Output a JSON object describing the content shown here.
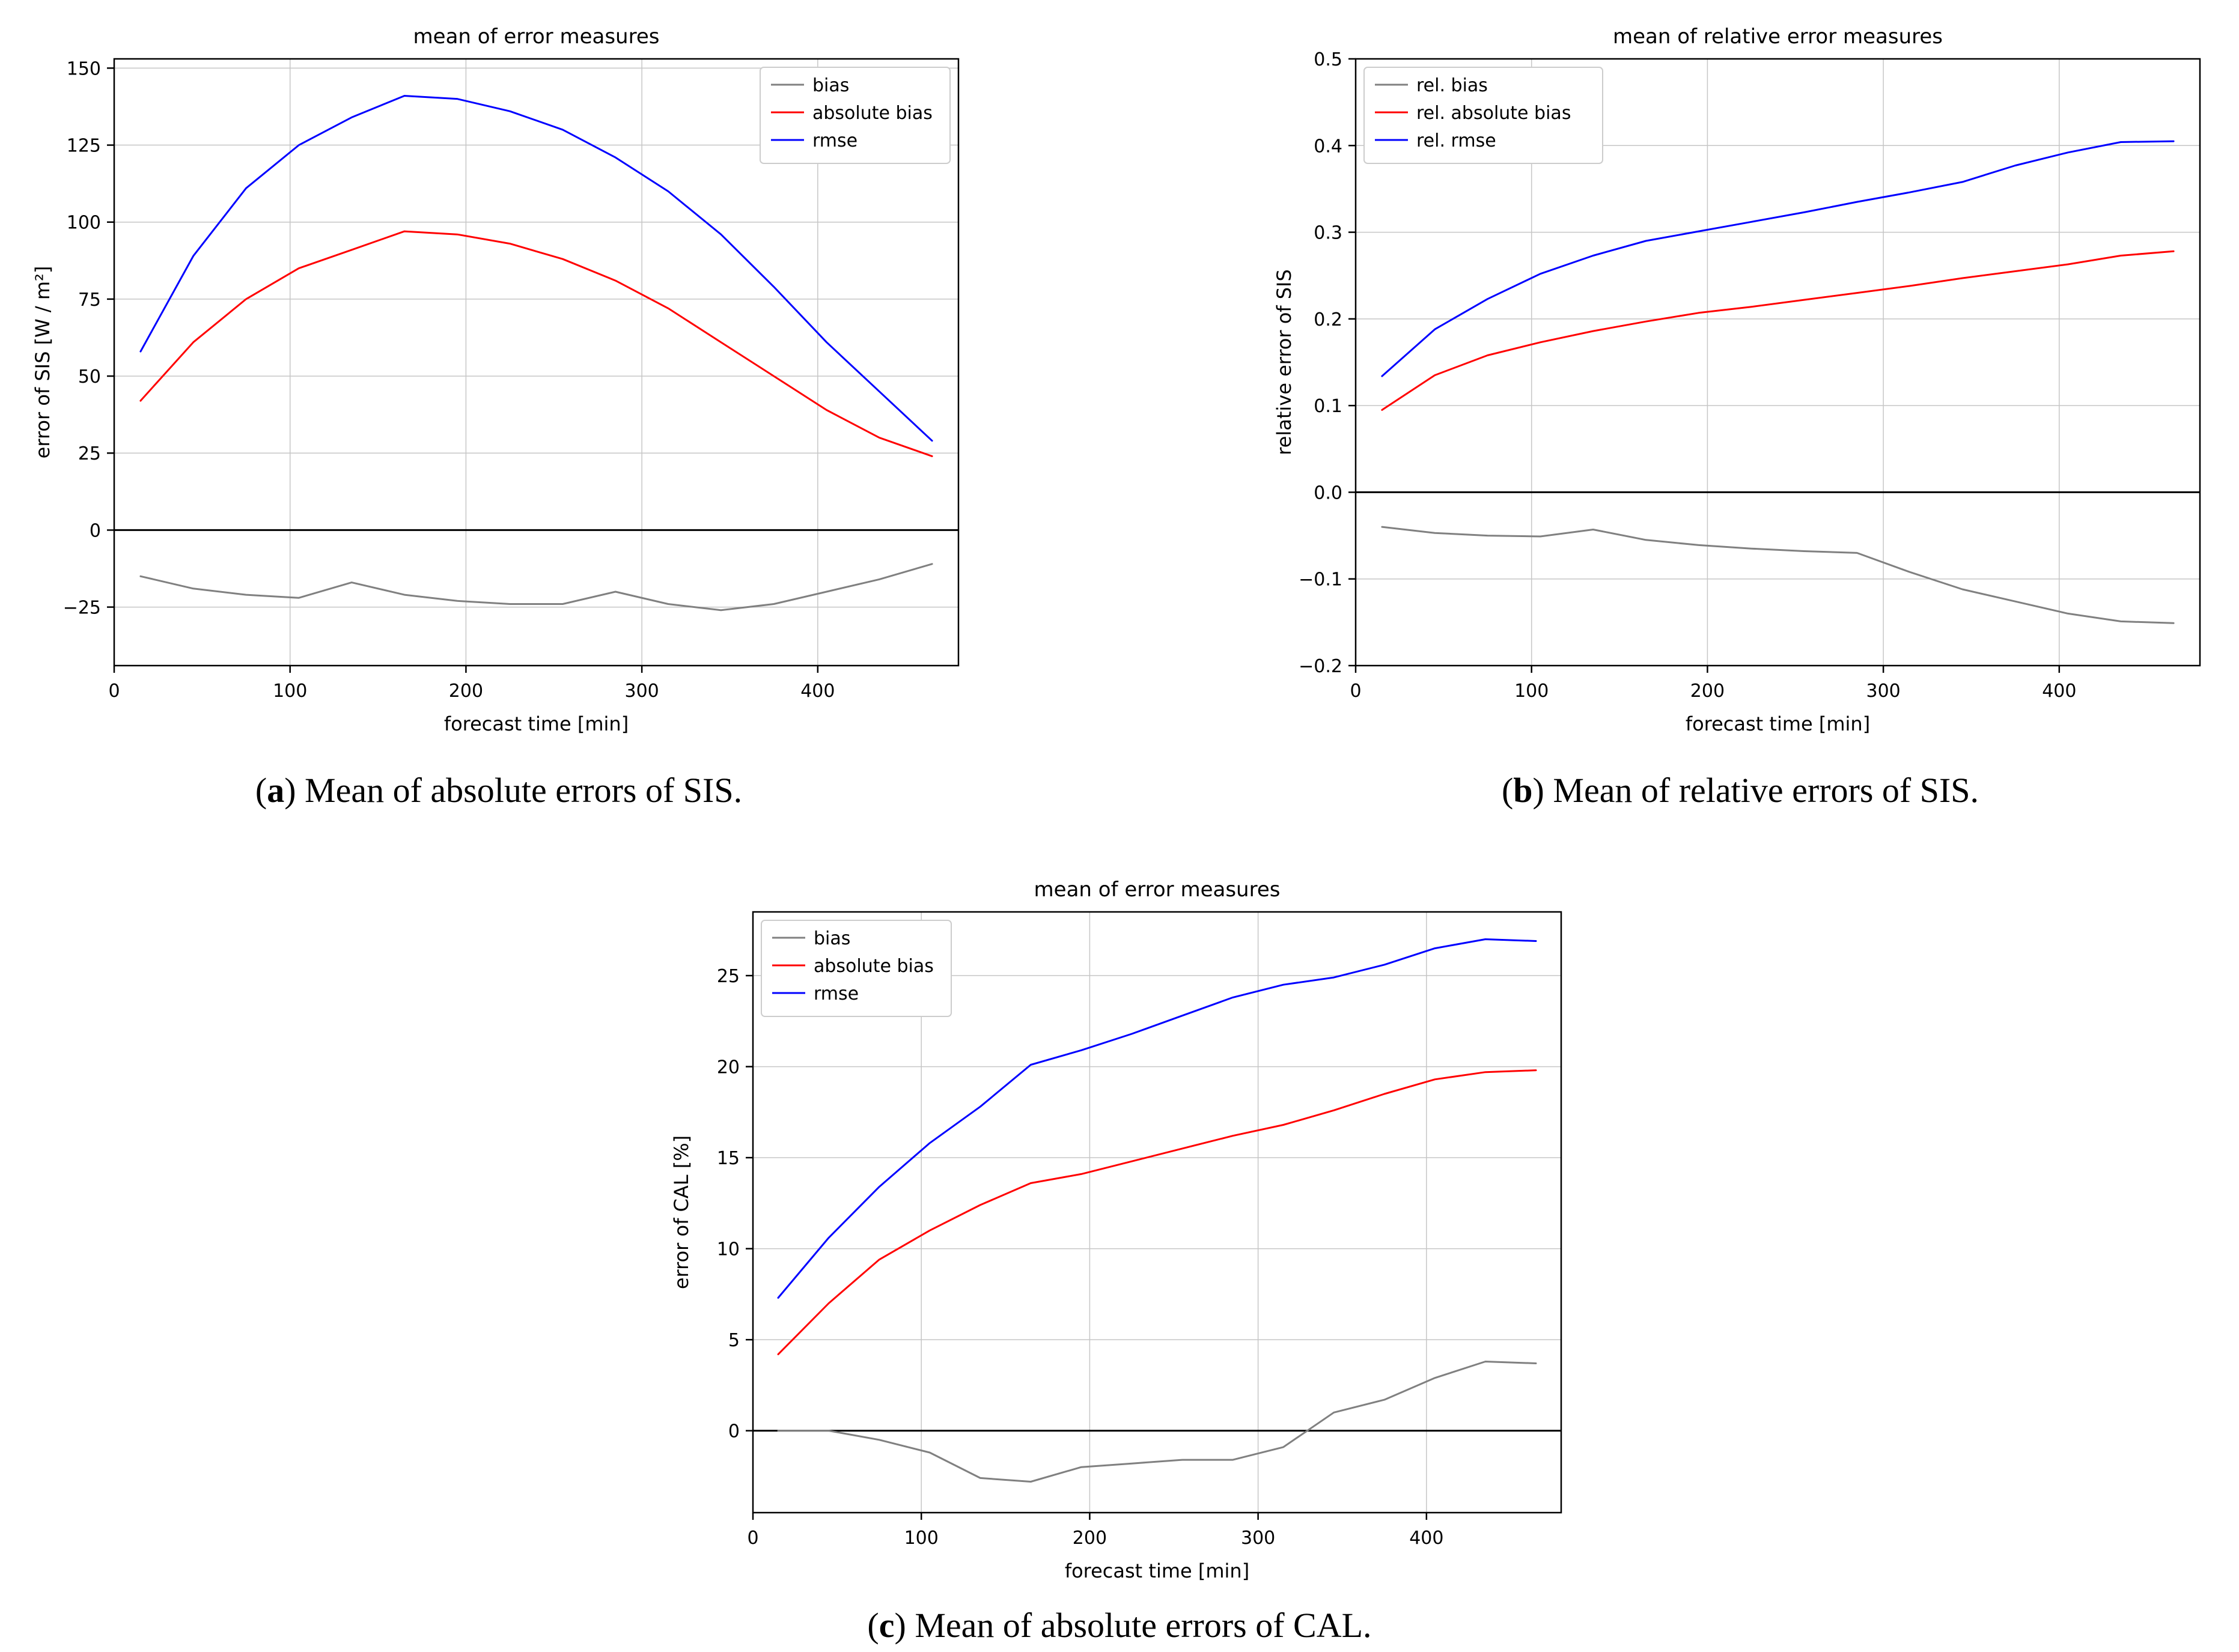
{
  "colors": {
    "bias": "#808080",
    "absolute_bias": "#ff0000",
    "rmse": "#0000ff",
    "grid": "#c6c6c6",
    "axis": "#000000",
    "legend_border": "#cccccc",
    "background": "#ffffff"
  },
  "captions": {
    "a": {
      "prefix": "(",
      "label": "a",
      "suffix": ")",
      "text": "Mean of absolute errors of SIS."
    },
    "b": {
      "prefix": "(",
      "label": "b",
      "suffix": ")",
      "text": "Mean of relative errors of SIS."
    },
    "c": {
      "prefix": "(",
      "label": "c",
      "suffix": ")",
      "text": "Mean of absolute errors of CAL."
    }
  },
  "chart_data": [
    {
      "id": "a",
      "type": "line",
      "title": "mean of error measures",
      "xlabel": "forecast time [min]",
      "ylabel": "error of SIS [W / m²]",
      "xlim": [
        0,
        480
      ],
      "ylim": [
        -44,
        153
      ],
      "xticks": [
        0,
        100,
        200,
        300,
        400
      ],
      "xtick_labels": [
        "0",
        "100",
        "200",
        "300",
        "400"
      ],
      "yticks": [
        -25,
        0,
        25,
        50,
        75,
        100,
        125,
        150
      ],
      "ytick_labels": [
        "−25",
        "0",
        "25",
        "50",
        "75",
        "100",
        "125",
        "150"
      ],
      "grid": true,
      "zero_line": true,
      "legend_position": "upper-right",
      "x": [
        15,
        45,
        75,
        105,
        135,
        165,
        195,
        225,
        255,
        285,
        315,
        345,
        375,
        405,
        435,
        465
      ],
      "series": [
        {
          "name": "bias",
          "color": "#808080",
          "values": [
            -15,
            -19,
            -21,
            -22,
            -17,
            -21,
            -23,
            -24,
            -24,
            -20,
            -24,
            -26,
            -24,
            -20,
            -16,
            -11
          ]
        },
        {
          "name": "absolute bias",
          "color": "#ff0000",
          "values": [
            42,
            61,
            75,
            85,
            91,
            97,
            96,
            93,
            88,
            81,
            72,
            61,
            50,
            39,
            30,
            24
          ]
        },
        {
          "name": "rmse",
          "color": "#0000ff",
          "values": [
            58,
            89,
            111,
            125,
            134,
            141,
            140,
            136,
            130,
            121,
            110,
            96,
            79,
            61,
            45,
            29
          ]
        }
      ]
    },
    {
      "id": "b",
      "type": "line",
      "title": "mean of relative error measures",
      "xlabel": "forecast time [min]",
      "ylabel": "relative error of SIS",
      "xlim": [
        0,
        480
      ],
      "ylim": [
        -0.2,
        0.5
      ],
      "xticks": [
        0,
        100,
        200,
        300,
        400
      ],
      "xtick_labels": [
        "0",
        "100",
        "200",
        "300",
        "400"
      ],
      "yticks": [
        -0.2,
        -0.1,
        0.0,
        0.1,
        0.2,
        0.3,
        0.4,
        0.5
      ],
      "ytick_labels": [
        "−0.2",
        "−0.1",
        "0.0",
        "0.1",
        "0.2",
        "0.3",
        "0.4",
        "0.5"
      ],
      "grid": true,
      "zero_line": true,
      "legend_position": "upper-left",
      "x": [
        15,
        45,
        75,
        105,
        135,
        165,
        195,
        225,
        255,
        285,
        315,
        345,
        375,
        405,
        435,
        465
      ],
      "series": [
        {
          "name": "rel. bias",
          "color": "#808080",
          "values": [
            -0.04,
            -0.047,
            -0.05,
            -0.051,
            -0.043,
            -0.055,
            -0.061,
            -0.065,
            -0.068,
            -0.07,
            -0.092,
            -0.112,
            -0.126,
            -0.14,
            -0.149,
            -0.151
          ]
        },
        {
          "name": "rel. absolute bias",
          "color": "#ff0000",
          "values": [
            0.095,
            0.135,
            0.158,
            0.173,
            0.186,
            0.197,
            0.207,
            0.214,
            0.222,
            0.23,
            0.238,
            0.247,
            0.255,
            0.263,
            0.273,
            0.278
          ]
        },
        {
          "name": "rel. rmse",
          "color": "#0000ff",
          "values": [
            0.134,
            0.188,
            0.223,
            0.252,
            0.273,
            0.29,
            0.301,
            0.312,
            0.323,
            0.335,
            0.346,
            0.358,
            0.377,
            0.392,
            0.404,
            0.405
          ]
        }
      ]
    },
    {
      "id": "c",
      "type": "line",
      "title": "mean of error measures",
      "xlabel": "forecast time [min]",
      "ylabel": "error of CAL [%]",
      "xlim": [
        0,
        480
      ],
      "ylim": [
        -4.5,
        28.5
      ],
      "xticks": [
        0,
        100,
        200,
        300,
        400
      ],
      "xtick_labels": [
        "0",
        "100",
        "200",
        "300",
        "400"
      ],
      "yticks": [
        0,
        5,
        10,
        15,
        20,
        25
      ],
      "ytick_labels": [
        "0",
        "5",
        "10",
        "15",
        "20",
        "25"
      ],
      "grid": true,
      "zero_line": true,
      "legend_position": "upper-left",
      "x": [
        15,
        45,
        75,
        105,
        135,
        165,
        195,
        225,
        255,
        285,
        315,
        345,
        375,
        405,
        435,
        465
      ],
      "series": [
        {
          "name": "bias",
          "color": "#808080",
          "values": [
            0.0,
            0.0,
            -0.5,
            -1.2,
            -2.6,
            -2.8,
            -2.0,
            -1.8,
            -1.6,
            -1.6,
            -0.9,
            1.0,
            1.7,
            2.9,
            3.8,
            3.7
          ]
        },
        {
          "name": "absolute bias",
          "color": "#ff0000",
          "values": [
            4.2,
            7.0,
            9.4,
            11.0,
            12.4,
            13.6,
            14.1,
            14.8,
            15.5,
            16.2,
            16.8,
            17.6,
            18.5,
            19.3,
            19.7,
            19.8
          ]
        },
        {
          "name": "rmse",
          "color": "#0000ff",
          "values": [
            7.3,
            10.6,
            13.4,
            15.8,
            17.8,
            20.1,
            20.9,
            21.8,
            22.8,
            23.8,
            24.5,
            24.9,
            25.6,
            26.5,
            27.0,
            26.9
          ]
        }
      ]
    }
  ]
}
